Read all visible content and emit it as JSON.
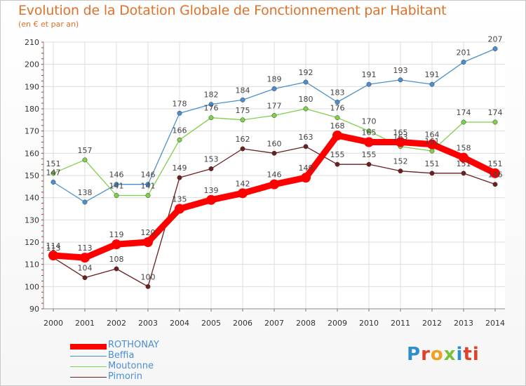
{
  "header": {
    "title": "Evolution de la Dotation Globale de Fonctionnement par Habitant",
    "subtitle": "(en € et par an)"
  },
  "logo": {
    "letters": [
      "P",
      "r",
      "o",
      "x",
      "i",
      "ti"
    ]
  },
  "chart_data": {
    "type": "line",
    "title": "Evolution de la Dotation Globale de Fonctionnement par Habitant",
    "subtitle": "(en € et par an)",
    "xlabel": "",
    "ylabel": "",
    "x": [
      "2000",
      "2001",
      "2002",
      "2003",
      "2004",
      "2005",
      "2006",
      "2007",
      "2008",
      "2009",
      "2010",
      "2011",
      "2012",
      "2013",
      "2014"
    ],
    "ylim": [
      90,
      210
    ],
    "yticks": [
      90,
      100,
      110,
      120,
      130,
      140,
      150,
      160,
      170,
      180,
      190,
      200,
      210
    ],
    "grid": true,
    "legend_position": "bottom-left",
    "series": [
      {
        "name": "ROTHONAY",
        "color": "#ff0000",
        "values": [
          114,
          113,
          119,
          120,
          135,
          139,
          142,
          146,
          149,
          168,
          165,
          165,
          164,
          158,
          151
        ]
      },
      {
        "name": "Beffia",
        "color": "#4a8fd0",
        "values": [
          147,
          138,
          146,
          146,
          178,
          182,
          184,
          189,
          192,
          183,
          191,
          193,
          191,
          201,
          207
        ]
      },
      {
        "name": "Moutonne",
        "color": "#7fd04a",
        "values": [
          151,
          157,
          141,
          141,
          166,
          176,
          175,
          177,
          180,
          176,
          170,
          163,
          161,
          174,
          174
        ]
      },
      {
        "name": "Pimorin",
        "color": "#6b1f1f",
        "values": [
          113,
          104,
          108,
          100,
          149,
          153,
          162,
          160,
          163,
          155,
          155,
          152,
          151,
          151,
          146
        ]
      }
    ]
  }
}
